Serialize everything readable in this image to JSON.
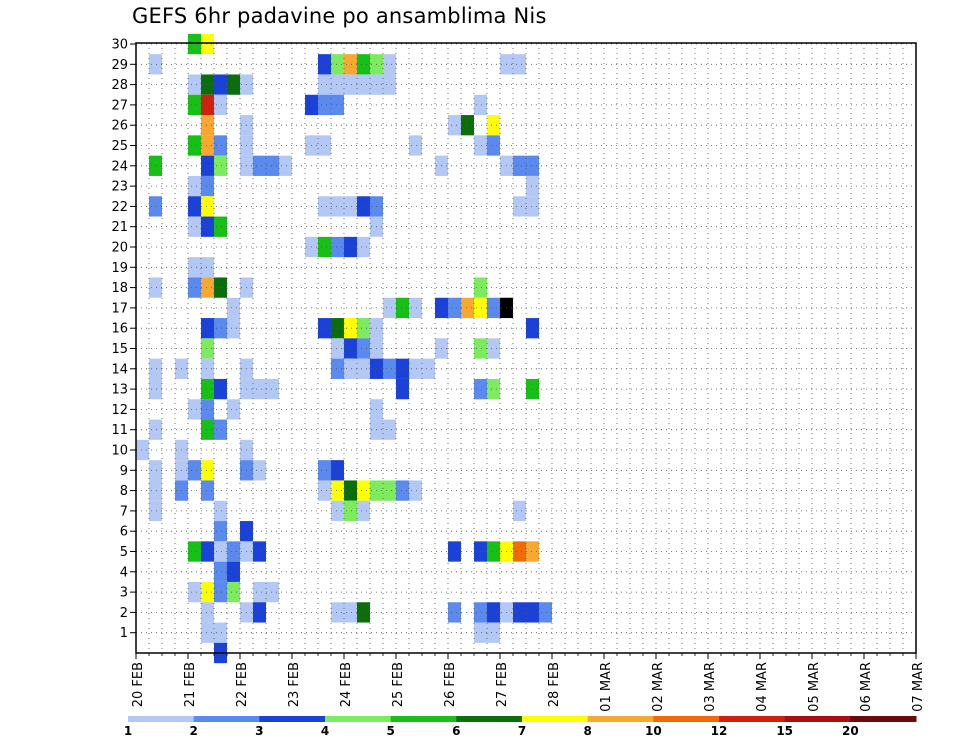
{
  "chart_data": {
    "type": "heatmap",
    "title": "GEFS 6hr padavine po ansamblima Nis",
    "x_tick_labels": [
      "20 FEB",
      "21 FEB",
      "22 FEB",
      "23 FEB",
      "24 FEB",
      "25 FEB",
      "26 FEB",
      "27 FEB",
      "28 FEB",
      "01 MAR",
      "02 MAR",
      "03 MAR",
      "04 MAR",
      "05 MAR",
      "06 MAR",
      "07 MAR"
    ],
    "x_steps_per_label": 4,
    "y_members": [
      1,
      30
    ],
    "color_levels": [
      1,
      2,
      3,
      4,
      5,
      6,
      7,
      8,
      10,
      12,
      15,
      20
    ],
    "colorbar_label_ticks": [
      "1",
      "2",
      "3",
      "4",
      "5",
      "6",
      "7",
      "8",
      "10",
      "12",
      "15",
      "20"
    ],
    "colors": [
      "#b4c8f5",
      "#5a8aee",
      "#1a42d8",
      "#7cec5e",
      "#16c016",
      "#0a6e0a",
      "#ffff00",
      "#f8a830",
      "#f06a0a",
      "#d02010",
      "#a81010",
      "#6a0a0a"
    ],
    "grid": true,
    "cells": [
      [
        30,
        4,
        4
      ],
      [
        30,
        5,
        6
      ],
      [
        29,
        1,
        0
      ],
      [
        29,
        14,
        2
      ],
      [
        29,
        15,
        3
      ],
      [
        29,
        16,
        7
      ],
      [
        29,
        17,
        4
      ],
      [
        29,
        18,
        3
      ],
      [
        29,
        19,
        0
      ],
      [
        29,
        28,
        0
      ],
      [
        29,
        29,
        0
      ],
      [
        28,
        4,
        0
      ],
      [
        28,
        5,
        5
      ],
      [
        28,
        6,
        2
      ],
      [
        28,
        7,
        5
      ],
      [
        28,
        8,
        0
      ],
      [
        28,
        14,
        0
      ],
      [
        28,
        15,
        0
      ],
      [
        28,
        16,
        0
      ],
      [
        28,
        17,
        0
      ],
      [
        28,
        18,
        0
      ],
      [
        28,
        19,
        0
      ],
      [
        27,
        4,
        4
      ],
      [
        27,
        5,
        9
      ],
      [
        27,
        6,
        0
      ],
      [
        27,
        13,
        2
      ],
      [
        27,
        14,
        1
      ],
      [
        27,
        15,
        1
      ],
      [
        27,
        26,
        0
      ],
      [
        26,
        5,
        7
      ],
      [
        26,
        8,
        0
      ],
      [
        26,
        24,
        0
      ],
      [
        26,
        25,
        5
      ],
      [
        26,
        27,
        6
      ],
      [
        25,
        4,
        4
      ],
      [
        25,
        5,
        7
      ],
      [
        25,
        6,
        1
      ],
      [
        25,
        8,
        0
      ],
      [
        25,
        13,
        0
      ],
      [
        25,
        14,
        0
      ],
      [
        25,
        21,
        0
      ],
      [
        25,
        26,
        0
      ],
      [
        25,
        27,
        1
      ],
      [
        24,
        1,
        4
      ],
      [
        24,
        5,
        2
      ],
      [
        24,
        6,
        3
      ],
      [
        24,
        8,
        0
      ],
      [
        24,
        9,
        1
      ],
      [
        24,
        10,
        1
      ],
      [
        24,
        11,
        0
      ],
      [
        24,
        23,
        0
      ],
      [
        24,
        28,
        0
      ],
      [
        24,
        29,
        1
      ],
      [
        24,
        30,
        1
      ],
      [
        23,
        4,
        0
      ],
      [
        23,
        5,
        1
      ],
      [
        23,
        30,
        0
      ],
      [
        22,
        1,
        1
      ],
      [
        22,
        4,
        2
      ],
      [
        22,
        5,
        6
      ],
      [
        22,
        14,
        0
      ],
      [
        22,
        15,
        0
      ],
      [
        22,
        16,
        0
      ],
      [
        22,
        17,
        2
      ],
      [
        22,
        18,
        1
      ],
      [
        22,
        29,
        0
      ],
      [
        22,
        30,
        0
      ],
      [
        21,
        4,
        0
      ],
      [
        21,
        5,
        2
      ],
      [
        21,
        6,
        4
      ],
      [
        21,
        18,
        0
      ],
      [
        20,
        13,
        0
      ],
      [
        20,
        14,
        4
      ],
      [
        20,
        15,
        1
      ],
      [
        20,
        16,
        2
      ],
      [
        20,
        17,
        0
      ],
      [
        19,
        4,
        0
      ],
      [
        19,
        5,
        0
      ],
      [
        18,
        1,
        0
      ],
      [
        18,
        4,
        1
      ],
      [
        18,
        5,
        7
      ],
      [
        18,
        6,
        5
      ],
      [
        18,
        8,
        0
      ],
      [
        18,
        26,
        3
      ],
      [
        17,
        7,
        0
      ],
      [
        17,
        19,
        0
      ],
      [
        17,
        20,
        4
      ],
      [
        17,
        21,
        0
      ],
      [
        17,
        23,
        2
      ],
      [
        17,
        24,
        1
      ],
      [
        17,
        25,
        7
      ],
      [
        17,
        26,
        6
      ],
      [
        17,
        27,
        1
      ],
      [
        17,
        28,
        30
      ],
      [
        16,
        5,
        2
      ],
      [
        16,
        6,
        1
      ],
      [
        16,
        7,
        0
      ],
      [
        16,
        14,
        2
      ],
      [
        16,
        15,
        5
      ],
      [
        16,
        16,
        6
      ],
      [
        16,
        17,
        3
      ],
      [
        16,
        18,
        0
      ],
      [
        16,
        30,
        2
      ],
      [
        15,
        5,
        3
      ],
      [
        15,
        15,
        0
      ],
      [
        15,
        16,
        2
      ],
      [
        15,
        17,
        1
      ],
      [
        15,
        18,
        0
      ],
      [
        15,
        23,
        0
      ],
      [
        15,
        26,
        3
      ],
      [
        15,
        27,
        0
      ],
      [
        14,
        1,
        0
      ],
      [
        14,
        3,
        0
      ],
      [
        14,
        5,
        0
      ],
      [
        14,
        8,
        0
      ],
      [
        14,
        15,
        1
      ],
      [
        14,
        16,
        0
      ],
      [
        14,
        17,
        0
      ],
      [
        14,
        18,
        2
      ],
      [
        14,
        19,
        1
      ],
      [
        14,
        20,
        2
      ],
      [
        14,
        21,
        0
      ],
      [
        14,
        22,
        0
      ],
      [
        13,
        1,
        0
      ],
      [
        13,
        5,
        4
      ],
      [
        13,
        6,
        2
      ],
      [
        13,
        8,
        0
      ],
      [
        13,
        9,
        0
      ],
      [
        13,
        10,
        0
      ],
      [
        13,
        20,
        2
      ],
      [
        13,
        26,
        1
      ],
      [
        13,
        27,
        3
      ],
      [
        13,
        30,
        4
      ],
      [
        12,
        4,
        0
      ],
      [
        12,
        5,
        1
      ],
      [
        12,
        7,
        0
      ],
      [
        12,
        18,
        0
      ],
      [
        11,
        1,
        0
      ],
      [
        11,
        5,
        4
      ],
      [
        11,
        6,
        1
      ],
      [
        11,
        18,
        0
      ],
      [
        11,
        19,
        0
      ],
      [
        10,
        0,
        0
      ],
      [
        10,
        3,
        0
      ],
      [
        10,
        8,
        0
      ],
      [
        9,
        1,
        0
      ],
      [
        9,
        3,
        0
      ],
      [
        9,
        4,
        1
      ],
      [
        9,
        5,
        6
      ],
      [
        9,
        8,
        1
      ],
      [
        9,
        9,
        0
      ],
      [
        9,
        14,
        1
      ],
      [
        9,
        15,
        2
      ],
      [
        8,
        1,
        0
      ],
      [
        8,
        3,
        1
      ],
      [
        8,
        5,
        1
      ],
      [
        8,
        14,
        0
      ],
      [
        8,
        15,
        6
      ],
      [
        8,
        16,
        5
      ],
      [
        8,
        17,
        6
      ],
      [
        8,
        18,
        3
      ],
      [
        8,
        19,
        3
      ],
      [
        8,
        20,
        1
      ],
      [
        8,
        21,
        0
      ],
      [
        7,
        1,
        0
      ],
      [
        7,
        6,
        0
      ],
      [
        7,
        15,
        0
      ],
      [
        7,
        16,
        3
      ],
      [
        7,
        17,
        0
      ],
      [
        7,
        29,
        0
      ],
      [
        6,
        6,
        1
      ],
      [
        6,
        8,
        2
      ],
      [
        5,
        4,
        4
      ],
      [
        5,
        5,
        2
      ],
      [
        5,
        6,
        0
      ],
      [
        5,
        7,
        1
      ],
      [
        5,
        8,
        0
      ],
      [
        5,
        9,
        2
      ],
      [
        5,
        24,
        2
      ],
      [
        5,
        26,
        2
      ],
      [
        5,
        27,
        4
      ],
      [
        5,
        28,
        6
      ],
      [
        5,
        29,
        8
      ],
      [
        5,
        30,
        7
      ],
      [
        4,
        6,
        1
      ],
      [
        4,
        7,
        2
      ],
      [
        3,
        4,
        0
      ],
      [
        3,
        5,
        6
      ],
      [
        3,
        6,
        1
      ],
      [
        3,
        7,
        3
      ],
      [
        3,
        9,
        0
      ],
      [
        3,
        10,
        0
      ],
      [
        2,
        5,
        0
      ],
      [
        2,
        8,
        0
      ],
      [
        2,
        9,
        2
      ],
      [
        2,
        15,
        0
      ],
      [
        2,
        16,
        0
      ],
      [
        2,
        17,
        5
      ],
      [
        2,
        24,
        1
      ],
      [
        2,
        26,
        1
      ],
      [
        2,
        27,
        2
      ],
      [
        2,
        28,
        0
      ],
      [
        2,
        29,
        2
      ],
      [
        2,
        30,
        2
      ],
      [
        2,
        31,
        1
      ],
      [
        1,
        5,
        0
      ],
      [
        1,
        6,
        0
      ],
      [
        1,
        26,
        0
      ],
      [
        1,
        27,
        0
      ],
      [
        0,
        6,
        2
      ]
    ]
  }
}
